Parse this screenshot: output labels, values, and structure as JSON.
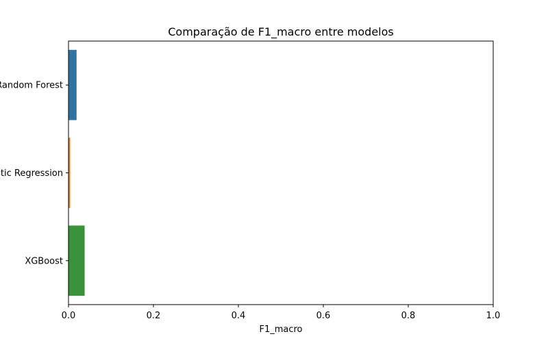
{
  "chart_data": {
    "type": "bar",
    "orientation": "horizontal",
    "title": "Comparação de F1_macro entre modelos",
    "xlabel": "F1_macro",
    "ylabel": "",
    "categories": [
      "Random Forest",
      "Logistic Regression",
      "XGBoost"
    ],
    "values": [
      0.019,
      0.004,
      0.038
    ],
    "colors": [
      "#3274a1",
      "#e1812c",
      "#3a923a"
    ],
    "xlim": [
      0.0,
      1.0
    ],
    "xticks": [
      0.0,
      0.2,
      0.4,
      0.6,
      0.8,
      1.0
    ],
    "xtick_labels": [
      "0.0",
      "0.2",
      "0.4",
      "0.6",
      "0.8",
      "1.0"
    ],
    "grid": false,
    "legend": "none"
  }
}
